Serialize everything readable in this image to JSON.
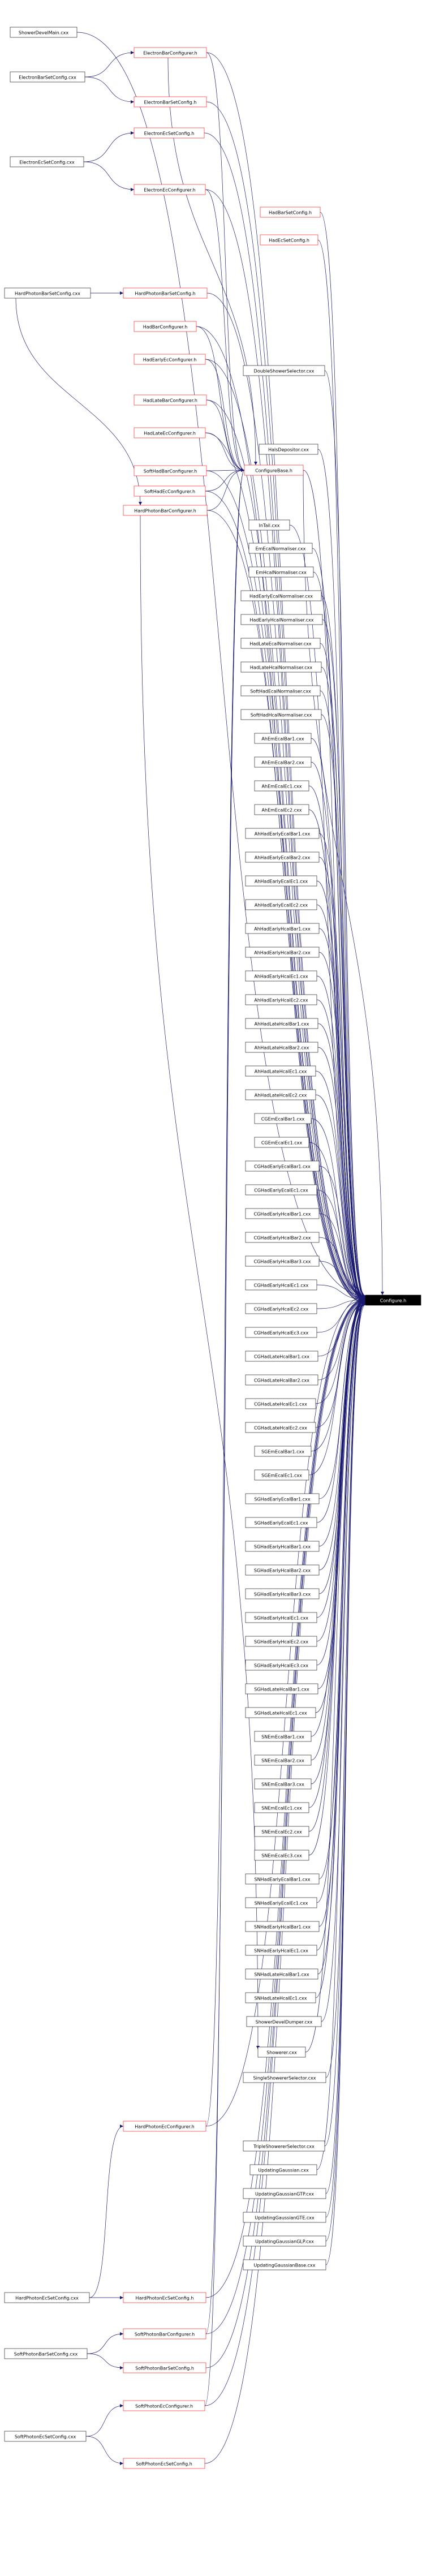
{
  "title": "",
  "target": "Configure.h",
  "base": "ConfigureBase.h",
  "nodes": [
    {
      "id": "ShowerDevelMain",
      "label": "ShowerDevelMain.cxx",
      "red": false
    },
    {
      "id": "ElectronBarSetConfigCxx",
      "label": "ElectronBarSetConfig.cxx",
      "red": false
    },
    {
      "id": "ElectronBarConfigurer",
      "label": "ElectronBarConfigurer.h",
      "red": true
    },
    {
      "id": "ElectronBarSetConfigH",
      "label": "ElectronBarSetConfig.h",
      "red": true
    },
    {
      "id": "ElectronEcSetConfigH",
      "label": "ElectronEcSetConfig.h",
      "red": true
    },
    {
      "id": "ElectronEcSetConfigCxx",
      "label": "ElectronEcSetConfig.cxx",
      "red": false
    },
    {
      "id": "ElectronEcConfigurer",
      "label": "ElectronEcConfigurer.h",
      "red": true
    },
    {
      "id": "HadBarSetConfigH",
      "label": "HadBarSetConfig.h",
      "red": true
    },
    {
      "id": "HadEcSetConfigH",
      "label": "HadEcSetConfig.h",
      "red": true
    },
    {
      "id": "HardPhotonBarSetConfigCxx",
      "label": "HardPhotonBarSetConfig.cxx",
      "red": false
    },
    {
      "id": "HardPhotonBarSetConfigH",
      "label": "HardPhotonBarSetConfig.h",
      "red": true
    },
    {
      "id": "HadBarConfigurer",
      "label": "HadBarConfigurer.h",
      "red": true
    },
    {
      "id": "HadEarlyEcConfigurer",
      "label": "HadEarlyEcConfigurer.h",
      "red": true
    },
    {
      "id": "DoubleShowerSelector",
      "label": "DoubleShowerSelector.cxx",
      "red": false
    },
    {
      "id": "HadLateBarConfigurer",
      "label": "HadLateBarConfigurer.h",
      "red": true
    },
    {
      "id": "HadLateEcConfigurer",
      "label": "HadLateEcConfigurer.h",
      "red": true
    },
    {
      "id": "HalsDepositor",
      "label": "HalsDepositor.cxx",
      "red": false
    },
    {
      "id": "SoftHadBarConfigurer",
      "label": "SoftHadBarConfigurer.h",
      "red": true
    },
    {
      "id": "SoftHadEcConfigurer",
      "label": "SoftHadEcConfigurer.h",
      "red": true
    },
    {
      "id": "HardPhotonBarConfigurer",
      "label": "HardPhotonBarConfigurer.h",
      "red": true
    },
    {
      "id": "ConfigureBase",
      "label": "ConfigureBase.h",
      "red": true
    },
    {
      "id": "InTail",
      "label": "InTail.cxx",
      "red": false
    },
    {
      "id": "EmEcalNormaliser",
      "label": "EmEcalNormaliser.cxx",
      "red": false
    },
    {
      "id": "EmHcalNormaliser",
      "label": "EmHcalNormaliser.cxx",
      "red": false
    },
    {
      "id": "HadEarlyEcalNormaliser",
      "label": "HadEarlyEcalNormaliser.cxx",
      "red": false
    },
    {
      "id": "HadEarlyHcalNormaliser",
      "label": "HadEarlyHcalNormaliser.cxx",
      "red": false
    },
    {
      "id": "HadLateEcalNormaliser",
      "label": "HadLateEcalNormaliser.cxx",
      "red": false
    },
    {
      "id": "HadLateHcalNormaliser",
      "label": "HadLateHcalNormaliser.cxx",
      "red": false
    },
    {
      "id": "SoftHadEcalNormaliser",
      "label": "SoftHadEcalNormaliser.cxx",
      "red": false
    },
    {
      "id": "SoftHadHcalNormaliser",
      "label": "SoftHadHcalNormaliser.cxx",
      "red": false
    },
    {
      "id": "AhEmEcalBar1",
      "label": "AhEmEcalBar1.cxx",
      "red": false
    },
    {
      "id": "AhEmEcalBar2",
      "label": "AhEmEcalBar2.cxx",
      "red": false
    },
    {
      "id": "AhEmEcalEc1",
      "label": "AhEmEcalEc1.cxx",
      "red": false
    },
    {
      "id": "AhEmEcalEc2",
      "label": "AhEmEcalEc2.cxx",
      "red": false
    },
    {
      "id": "AhHadEarlyEcalBar1",
      "label": "AhHadEarlyEcalBar1.cxx",
      "red": false
    },
    {
      "id": "AhHadEarlyEcalBar2",
      "label": "AhHadEarlyEcalBar2.cxx",
      "red": false
    },
    {
      "id": "AhHadEarlyEcalEc1",
      "label": "AhHadEarlyEcalEc1.cxx",
      "red": false
    },
    {
      "id": "AhHadEarlyEcalEc2",
      "label": "AhHadEarlyEcalEc2.cxx",
      "red": false
    },
    {
      "id": "AhHadEarlyHcalBar1",
      "label": "AhHadEarlyHcalBar1.cxx",
      "red": false
    },
    {
      "id": "AhHadEarlyHcalBar2",
      "label": "AhHadEarlyHcalBar2.cxx",
      "red": false
    },
    {
      "id": "AhHadEarlyHcalEc1",
      "label": "AhHadEarlyHcalEc1.cxx",
      "red": false
    },
    {
      "id": "AhHadEarlyHcalEc2",
      "label": "AhHadEarlyHcalEc2.cxx",
      "red": false
    },
    {
      "id": "AhHadLateHcalBar1",
      "label": "AhHadLateHcalBar1.cxx",
      "red": false
    },
    {
      "id": "AhHadLateHcalBar2",
      "label": "AhHadLateHcalBar2.cxx",
      "red": false
    },
    {
      "id": "AhHadLateHcalEc1",
      "label": "AhHadLateHcalEc1.cxx",
      "red": false
    },
    {
      "id": "AhHadLateHcalEc2",
      "label": "AhHadLateHcalEc2.cxx",
      "red": false
    },
    {
      "id": "CGEmEcalBar1",
      "label": "CGEmEcalBar1.cxx",
      "red": false
    },
    {
      "id": "CGEmEcalEc1",
      "label": "CGEmEcalEc1.cxx",
      "red": false
    },
    {
      "id": "CGHadEarlyEcalBar1",
      "label": "CGHadEarlyEcalBar1.cxx",
      "red": false
    },
    {
      "id": "CGHadEarlyEcalEc1",
      "label": "CGHadEarlyEcalEc1.cxx",
      "red": false
    },
    {
      "id": "CGHadEarlyHcalBar1",
      "label": "CGHadEarlyHcalBar1.cxx",
      "red": false
    },
    {
      "id": "CGHadEarlyHcalBar2",
      "label": "CGHadEarlyHcalBar2.cxx",
      "red": false
    },
    {
      "id": "CGHadEarlyHcalBar3",
      "label": "CGHadEarlyHcalBar3.cxx",
      "red": false
    },
    {
      "id": "CGHadEarlyHcalEc1",
      "label": "CGHadEarlyHcalEc1.cxx",
      "red": false
    },
    {
      "id": "CGHadEarlyHcalEc2",
      "label": "CGHadEarlyHcalEc2.cxx",
      "red": false
    },
    {
      "id": "CGHadEarlyHcalEc3",
      "label": "CGHadEarlyHcalEc3.cxx",
      "red": false
    },
    {
      "id": "CGHadLateHcalBar1",
      "label": "CGHadLateHcalBar1.cxx",
      "red": false
    },
    {
      "id": "CGHadLateHcalBar2",
      "label": "CGHadLateHcalBar2.cxx",
      "red": false
    },
    {
      "id": "CGHadLateHcalEc1",
      "label": "CGHadLateHcalEc1.cxx",
      "red": false
    },
    {
      "id": "CGHadLateHcalEc2",
      "label": "CGHadLateHcalEc2.cxx",
      "red": false
    },
    {
      "id": "SGEmEcalBar1",
      "label": "SGEmEcalBar1.cxx",
      "red": false
    },
    {
      "id": "SGEmEcalEc1",
      "label": "SGEmEcalEc1.cxx",
      "red": false
    },
    {
      "id": "SGHadEarlyEcalBar1",
      "label": "SGHadEarlyEcalBar1.cxx",
      "red": false
    },
    {
      "id": "SGHadEarlyEcalEc1",
      "label": "SGHadEarlyEcalEc1.cxx",
      "red": false
    },
    {
      "id": "SGHadEarlyHcalBar1",
      "label": "SGHadEarlyHcalBar1.cxx",
      "red": false
    },
    {
      "id": "SGHadEarlyHcalBar2",
      "label": "SGHadEarlyHcalBar2.cxx",
      "red": false
    },
    {
      "id": "SGHadEarlyHcalBar3",
      "label": "SGHadEarlyHcalBar3.cxx",
      "red": false
    },
    {
      "id": "SGHadEarlyHcalEc1",
      "label": "SGHadEarlyHcalEc1.cxx",
      "red": false
    },
    {
      "id": "SGHadEarlyHcalEc2",
      "label": "SGHadEarlyHcalEc2.cxx",
      "red": false
    },
    {
      "id": "SGHadEarlyHcalEc3",
      "label": "SGHadEarlyHcalEc3.cxx",
      "red": false
    },
    {
      "id": "SGHadLateHcalBar1",
      "label": "SGHadLateHcalBar1.cxx",
      "red": false
    },
    {
      "id": "SGHadLateHcalEc1",
      "label": "SGHadLateHcalEc1.cxx",
      "red": false
    },
    {
      "id": "SNEmEcalBar1",
      "label": "SNEmEcalBar1.cxx",
      "red": false
    },
    {
      "id": "SNEmEcalBar2",
      "label": "SNEmEcalBar2.cxx",
      "red": false
    },
    {
      "id": "SNEmEcalBar3",
      "label": "SNEmEcalBar3.cxx",
      "red": false
    },
    {
      "id": "SNEmEcalEc1",
      "label": "SNEmEcalEc1.cxx",
      "red": false
    },
    {
      "id": "SNEmEcalEc2",
      "label": "SNEmEcalEc2.cxx",
      "red": false
    },
    {
      "id": "SNEmEcalEc3",
      "label": "SNEmEcalEc3.cxx",
      "red": false
    },
    {
      "id": "SNHadEarlyEcalBar1",
      "label": "SNHadEarlyEcalBar1.cxx",
      "red": false
    },
    {
      "id": "SNHadEarlyEcalEc1",
      "label": "SNHadEarlyEcalEc1.cxx",
      "red": false
    },
    {
      "id": "SNHadEarlyHcalBar1",
      "label": "SNHadEarlyHcalBar1.cxx",
      "red": false
    },
    {
      "id": "SNHadEarlyHcalEc1",
      "label": "SNHadEarlyHcalEc1.cxx",
      "red": false
    },
    {
      "id": "SNHadLateHcalBar1",
      "label": "SNHadLateHcalBar1.cxx",
      "red": false
    },
    {
      "id": "SNHadLateHcalEc1",
      "label": "SNHadLateHcalEc1.cxx",
      "red": false
    },
    {
      "id": "ShowerDevelDumper",
      "label": "ShowerDevelDumper.cxx",
      "red": false
    },
    {
      "id": "Showerer",
      "label": "Showerer.cxx",
      "red": false
    },
    {
      "id": "SingleShowererSelector",
      "label": "SingleShowererSelector.cxx",
      "red": false
    },
    {
      "id": "HardPhotonEcConfigurer",
      "label": "HardPhotonEcConfigurer.h",
      "red": true
    },
    {
      "id": "TripleShowererSelector",
      "label": "TripleShowererSelector.cxx",
      "red": false
    },
    {
      "id": "UpdatingGaussian",
      "label": "UpdatingGaussian.cxx",
      "red": false
    },
    {
      "id": "UpdatingGaussianGTP",
      "label": "UpdatingGaussianGTP.cxx",
      "red": false
    },
    {
      "id": "UpdatingGaussianGTE",
      "label": "UpdatingGaussianGTE.cxx",
      "red": false
    },
    {
      "id": "UpdatingGaussianGLP",
      "label": "UpdatingGaussianGLP.cxx",
      "red": false
    },
    {
      "id": "UpdatingGaussianBase",
      "label": "UpdatingGaussianBase.cxx",
      "red": false
    },
    {
      "id": "HardPhotonEcSetConfigCxx",
      "label": "HardPhotonEcSetConfig.cxx",
      "red": false
    },
    {
      "id": "HardPhotonEcSetConfigH",
      "label": "HardPhotonEcSetConfig.h",
      "red": true
    },
    {
      "id": "SoftPhotonBarSetConfigCxx",
      "label": "SoftPhotonBarSetConfig.cxx",
      "red": false
    },
    {
      "id": "SoftPhotonBarConfigurer",
      "label": "SoftPhotonBarConfigurer.h",
      "red": true
    },
    {
      "id": "SoftPhotonBarSetConfigH",
      "label": "SoftPhotonBarSetConfig.h",
      "red": true
    },
    {
      "id": "SoftPhotonEcSetConfigCxx",
      "label": "SoftPhotonEcSetConfig.cxx",
      "red": false
    },
    {
      "id": "SoftPhotonEcConfigurer",
      "label": "SoftPhotonEcConfigurer.h",
      "red": true
    },
    {
      "id": "SoftPhotonEcSetConfigH",
      "label": "SoftPhotonEcSetConfig.h",
      "red": true
    }
  ]
}
